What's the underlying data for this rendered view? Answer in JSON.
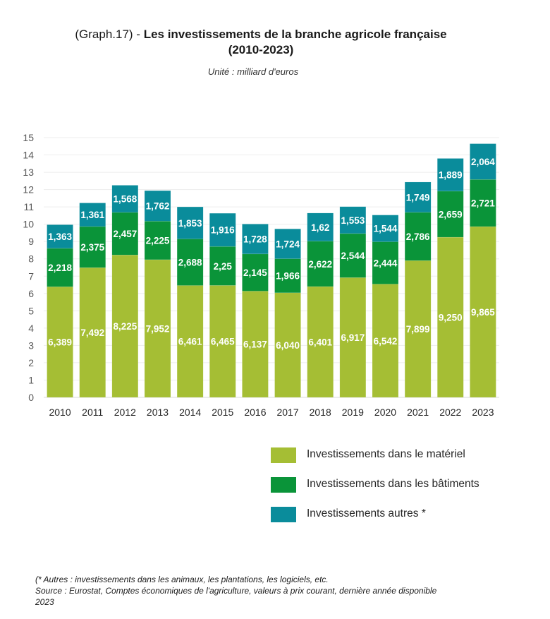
{
  "chart_data": {
    "type": "bar",
    "stacked": true,
    "title_prefix": "(Graph.17) - ",
    "title": "Les investissements de la branche agricole française",
    "title_line2": "(2010-2023)",
    "subtitle": "Unité :  milliard d'euros",
    "xlabel": "",
    "ylabel": "",
    "ylim": [
      0,
      15
    ],
    "yticks": [
      "0",
      "1",
      "2",
      "3",
      "4",
      "5",
      "6",
      "7",
      "8",
      "9",
      "10",
      "11",
      "12",
      "13",
      "14",
      "15"
    ],
    "grid": true,
    "legend_position": "bottom-right",
    "categories": [
      "2010",
      "2011",
      "2012",
      "2013",
      "2014",
      "2015",
      "2016",
      "2017",
      "2018",
      "2019",
      "2020",
      "2021",
      "2022",
      "2023"
    ],
    "series": [
      {
        "name": "Investissements dans le matériel",
        "color": "#A5BE34",
        "values": [
          6.389,
          7.492,
          8.225,
          7.952,
          6.461,
          6.465,
          6.137,
          6.04,
          6.401,
          6.917,
          6.542,
          7.899,
          9.25,
          9.865
        ],
        "labels": [
          "6,389",
          "7,492",
          "8,225",
          "7,952",
          "6,461",
          "6,465",
          "6,137",
          "6,040",
          "6,401",
          "6,917",
          "6,542",
          "7,899",
          "9,250",
          "9,865"
        ]
      },
      {
        "name": "Investissements dans les bâtiments",
        "color": "#0A9439",
        "values": [
          2.218,
          2.375,
          2.457,
          2.225,
          2.688,
          2.25,
          2.145,
          1.966,
          2.622,
          2.544,
          2.444,
          2.786,
          2.659,
          2.721
        ],
        "labels": [
          "2,218",
          "2,375",
          "2,457",
          "2,225",
          "2,688",
          "2,25",
          "2,145",
          "1,966",
          "2,622",
          "2,544",
          "2,444",
          "2,786",
          "2,659",
          "2,721"
        ]
      },
      {
        "name": "Investissements autres *",
        "color": "#0A8C9B",
        "values": [
          1.363,
          1.361,
          1.568,
          1.762,
          1.853,
          1.916,
          1.728,
          1.724,
          1.62,
          1.553,
          1.544,
          1.749,
          1.889,
          2.064
        ],
        "labels": [
          "1,363",
          "1,361",
          "1,568",
          "1,762",
          "1,853",
          "1,916",
          "1,728",
          "1,724",
          "1,62",
          "1,553",
          "1,544",
          "1,749",
          "1,889",
          "2,064"
        ]
      }
    ]
  },
  "footnote": {
    "line1": "(* Autres : investissements dans les animaux, les plantations, les logiciels, etc.",
    "line2": "Source : Eurostat, Comptes économiques de l'agriculture, valeurs à prix courant, dernière année disponible",
    "line3": "2023"
  }
}
